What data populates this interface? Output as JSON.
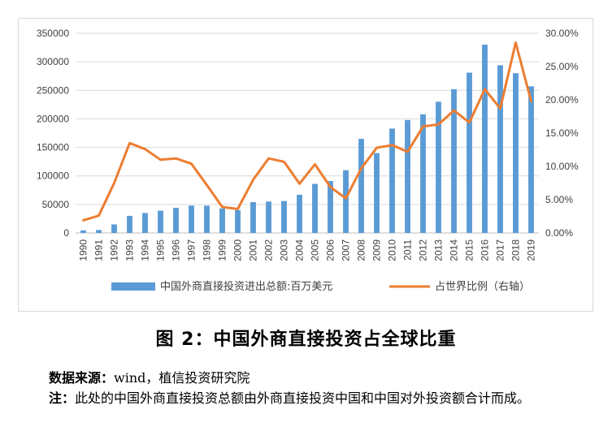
{
  "chart_data": {
    "type": "bar+line",
    "categories": [
      "1990",
      "1991",
      "1992",
      "1993",
      "1994",
      "1995",
      "1996",
      "1997",
      "1998",
      "1999",
      "2000",
      "2001",
      "2002",
      "2003",
      "2004",
      "2005",
      "2006",
      "2007",
      "2008",
      "2009",
      "2010",
      "2011",
      "2012",
      "2013",
      "2014",
      "2015",
      "2016",
      "2017",
      "2018",
      "2019"
    ],
    "series": [
      {
        "name": "中国外商直接投资进出总额:百万美元",
        "type": "bar",
        "axis": "left",
        "color": "#5b9bd5",
        "values": [
          4500,
          5200,
          15000,
          30000,
          35000,
          39000,
          44000,
          48000,
          48000,
          43000,
          40000,
          54000,
          55000,
          56000,
          67000,
          86000,
          91000,
          110000,
          165000,
          140000,
          183000,
          198000,
          208000,
          230000,
          252000,
          281000,
          330000,
          294000,
          280000,
          257000
        ]
      },
      {
        "name": "占世界比例（右轴）",
        "type": "line",
        "axis": "right",
        "color": "#ed7d31",
        "values": [
          0.019,
          0.026,
          0.075,
          0.135,
          0.126,
          0.11,
          0.112,
          0.104,
          0.072,
          0.039,
          0.036,
          0.08,
          0.112,
          0.107,
          0.074,
          0.103,
          0.069,
          0.052,
          0.097,
          0.128,
          0.132,
          0.122,
          0.16,
          0.163,
          0.184,
          0.166,
          0.216,
          0.187,
          0.286,
          0.198
        ]
      }
    ],
    "left_axis": {
      "ylim": [
        0,
        350000
      ],
      "ticks": [
        "0",
        "50000",
        "100000",
        "150000",
        "200000",
        "250000",
        "300000",
        "350000"
      ]
    },
    "right_axis": {
      "ylim": [
        0,
        0.3
      ],
      "ticks": [
        "0.00%",
        "5.00%",
        "10.00%",
        "15.00%",
        "20.00%",
        "25.00%",
        "30.00%"
      ]
    },
    "legend_position": "bottom"
  },
  "caption": {
    "title": "图 2：中国外商直接投资占全球比重",
    "source_label": "数据来源：",
    "source_text": "wind，植信投资研究院",
    "note_label": "注：",
    "note_text": "此处的中国外商直接投资总额由外商直接投资中国和中国对外投资额合计而成。"
  }
}
